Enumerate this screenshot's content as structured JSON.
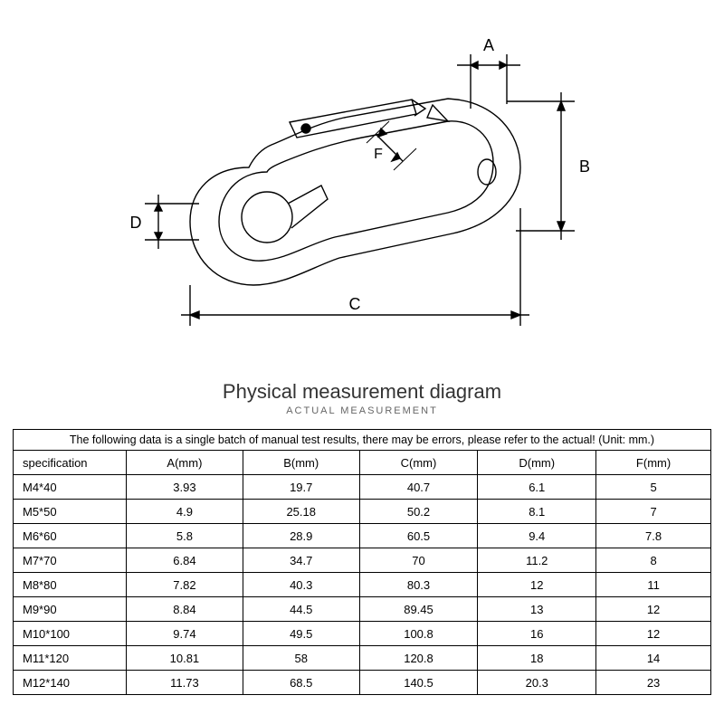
{
  "diagram": {
    "labels": {
      "A": "A",
      "B": "B",
      "C": "C",
      "D": "D",
      "F": "F"
    },
    "stroke": "#000000",
    "stroke_width": 1.2
  },
  "titles": {
    "main": "Physical measurement diagram",
    "sub": "ACTUAL MEASUREMENT"
  },
  "table": {
    "note": "The following data is a single batch of manual test results, there may be errors, please refer to the actual! (Unit: mm.)",
    "header": [
      "specification",
      "A(mm)",
      "B(mm)",
      "C(mm)",
      "D(mm)",
      "F(mm)"
    ],
    "rows": [
      [
        "M4*40",
        "3.93",
        "19.7",
        "40.7",
        "6.1",
        "5"
      ],
      [
        "M5*50",
        "4.9",
        "25.18",
        "50.2",
        "8.1",
        "7"
      ],
      [
        "M6*60",
        "5.8",
        "28.9",
        "60.5",
        "9.4",
        "7.8"
      ],
      [
        "M7*70",
        "6.84",
        "34.7",
        "70",
        "11.2",
        "8"
      ],
      [
        "M8*80",
        "7.82",
        "40.3",
        "80.3",
        "12",
        "11"
      ],
      [
        "M9*90",
        "8.84",
        "44.5",
        "89.45",
        "13",
        "12"
      ],
      [
        "M10*100",
        "9.74",
        "49.5",
        "100.8",
        "16",
        "12"
      ],
      [
        "M11*120",
        "10.81",
        "58",
        "120.8",
        "18",
        "14"
      ],
      [
        "M12*140",
        "11.73",
        "68.5",
        "140.5",
        "20.3",
        "23"
      ]
    ]
  }
}
